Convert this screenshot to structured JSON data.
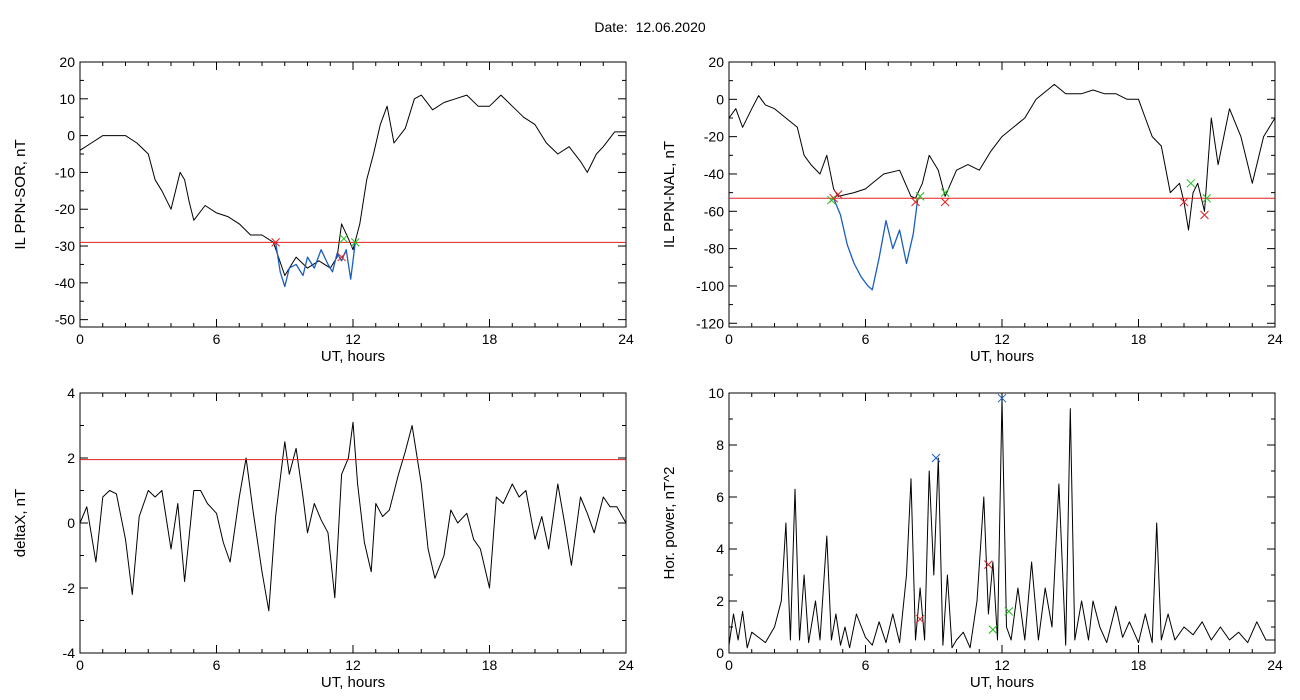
{
  "title": "Date:  12.06.2020",
  "chart_data": [
    {
      "type": "line",
      "xlabel": "UT, hours",
      "ylabel": "IL PPN-SOR, nT",
      "xlim": [
        0,
        24
      ],
      "ylim": [
        -52,
        20
      ],
      "xticks": [
        0,
        6,
        12,
        18,
        24
      ],
      "yticks": [
        -50,
        -40,
        -30,
        -20,
        -10,
        0,
        10,
        20
      ],
      "threshold": -29,
      "series": [
        {
          "color": "#000000",
          "x": [
            0,
            0.5,
            1,
            1.5,
            2,
            2.5,
            3,
            3.3,
            3.6,
            4,
            4.4,
            4.6,
            4.8,
            5,
            5.5,
            6,
            6.5,
            7,
            7.5,
            8,
            8.5,
            9,
            9.5,
            10,
            10.5,
            11,
            11.3,
            11.5,
            11.8,
            12,
            12.3,
            12.6,
            12.9,
            13.2,
            13.5,
            13.8,
            14.3,
            14.7,
            15,
            15.5,
            16,
            16.5,
            17,
            17.5,
            18,
            18.5,
            19,
            19.5,
            20,
            20.5,
            21,
            21.5,
            22,
            22.3,
            22.7,
            23,
            23.5,
            24
          ],
          "y": [
            -4,
            -2,
            0,
            0,
            0,
            -2,
            -5,
            -12,
            -15,
            -20,
            -10,
            -12,
            -18,
            -23,
            -19,
            -21,
            -22,
            -24,
            -27,
            -27,
            -29,
            -38,
            -33,
            -36,
            -34,
            -36,
            -33,
            -24,
            -28,
            -31,
            -24,
            -12,
            -5,
            3,
            8,
            -2,
            2,
            10,
            11,
            7,
            9,
            10,
            11,
            8,
            8,
            11,
            8,
            5,
            3,
            -2,
            -5,
            -3,
            -7,
            -10,
            -5,
            -3,
            1,
            1
          ]
        },
        {
          "color": "#1a5fbf",
          "x": [
            8.6,
            8.8,
            9,
            9.2,
            9.5,
            9.8,
            10,
            10.3,
            10.6,
            10.9,
            11.1,
            11.3,
            11.5,
            11.7,
            11.9,
            12.1
          ],
          "y": [
            -29,
            -37,
            -41,
            -36,
            -35,
            -38,
            -33,
            -36,
            -31,
            -35,
            -37,
            -32,
            -34,
            -31,
            -39,
            -29
          ]
        }
      ],
      "markers": [
        {
          "x": 8.6,
          "y": -29,
          "color": "#e02020"
        },
        {
          "x": 11.5,
          "y": -33,
          "color": "#e02020"
        },
        {
          "x": 11.6,
          "y": -28,
          "color": "#20c020"
        },
        {
          "x": 12.1,
          "y": -29,
          "color": "#20c020"
        }
      ]
    },
    {
      "type": "line",
      "xlabel": "UT, hours",
      "ylabel": "IL PPN-NAL, nT",
      "xlim": [
        0,
        24
      ],
      "ylim": [
        -122,
        20
      ],
      "xticks": [
        0,
        6,
        12,
        18,
        24
      ],
      "yticks": [
        -120,
        -100,
        -80,
        -60,
        -40,
        -20,
        0,
        20
      ],
      "threshold": -53,
      "series": [
        {
          "color": "#000000",
          "x": [
            0,
            0.3,
            0.6,
            1,
            1.3,
            1.6,
            2,
            2.5,
            3,
            3.3,
            3.6,
            4,
            4.3,
            4.6,
            4.8,
            5.5,
            6,
            6.3,
            6.8,
            7.5,
            8,
            8.2,
            8.5,
            8.8,
            9.2,
            9.5,
            10,
            10.5,
            11,
            11.5,
            12,
            12.5,
            13,
            13.5,
            14,
            14.3,
            14.8,
            15.5,
            16,
            16.5,
            17,
            17.5,
            18,
            18.3,
            18.6,
            19,
            19.4,
            19.8,
            20,
            20.2,
            20.4,
            20.6,
            20.9,
            21.2,
            21.5,
            22,
            22.5,
            23,
            23.5,
            24
          ],
          "y": [
            -10,
            -5,
            -15,
            -5,
            2,
            -3,
            -5,
            -10,
            -15,
            -30,
            -35,
            -40,
            -30,
            -48,
            -52,
            -50,
            -48,
            -45,
            -40,
            -38,
            -52,
            -53,
            -45,
            -30,
            -38,
            -52,
            -38,
            -35,
            -38,
            -28,
            -20,
            -15,
            -10,
            0,
            5,
            8,
            3,
            3,
            5,
            3,
            3,
            0,
            0,
            -10,
            -20,
            -25,
            -50,
            -45,
            -55,
            -70,
            -50,
            -45,
            -60,
            -10,
            -35,
            -5,
            -20,
            -45,
            -20,
            -10
          ]
        },
        {
          "color": "#1a5fbf",
          "x": [
            4.6,
            4.9,
            5.2,
            5.5,
            5.8,
            6.1,
            6.3,
            6.6,
            6.9,
            7.2,
            7.5,
            7.8,
            8.1,
            8.3
          ],
          "y": [
            -53,
            -62,
            -78,
            -88,
            -95,
            -100,
            -102,
            -85,
            -65,
            -80,
            -70,
            -88,
            -72,
            -53
          ]
        }
      ],
      "markers": [
        {
          "x": 4.6,
          "y": -53,
          "color": "#e02020"
        },
        {
          "x": 4.8,
          "y": -51,
          "color": "#e02020"
        },
        {
          "x": 8.2,
          "y": -55,
          "color": "#e02020"
        },
        {
          "x": 9.5,
          "y": -55,
          "color": "#e02020"
        },
        {
          "x": 20,
          "y": -55,
          "color": "#e02020"
        },
        {
          "x": 20.9,
          "y": -62,
          "color": "#e02020"
        },
        {
          "x": 4.5,
          "y": -54,
          "color": "#20c020"
        },
        {
          "x": 8.4,
          "y": -52,
          "color": "#20c020"
        },
        {
          "x": 9.5,
          "y": -50,
          "color": "#20c020"
        },
        {
          "x": 20.3,
          "y": -45,
          "color": "#20c020"
        },
        {
          "x": 21,
          "y": -53,
          "color": "#20c020"
        }
      ]
    },
    {
      "type": "line",
      "xlabel": "UT, hours",
      "ylabel": "deltaX, nT",
      "xlim": [
        0,
        24
      ],
      "ylim": [
        -4,
        4
      ],
      "xticks": [
        0,
        6,
        12,
        18,
        24
      ],
      "yticks": [
        -4,
        -2,
        0,
        2,
        4
      ],
      "threshold": 1.95,
      "series": [
        {
          "color": "#000000",
          "x": [
            0,
            0.3,
            0.7,
            1,
            1.3,
            1.6,
            2,
            2.3,
            2.6,
            3,
            3.3,
            3.6,
            4,
            4.3,
            4.6,
            5,
            5.3,
            5.6,
            6,
            6.3,
            6.6,
            7,
            7.3,
            7.6,
            8,
            8.3,
            8.6,
            9,
            9.2,
            9.5,
            9.8,
            10,
            10.3,
            10.6,
            10.9,
            11.2,
            11.5,
            11.8,
            12,
            12.2,
            12.5,
            12.8,
            13,
            13.3,
            13.6,
            14,
            14.3,
            14.6,
            15,
            15.3,
            15.6,
            16,
            16.3,
            16.6,
            17,
            17.3,
            17.6,
            18,
            18.3,
            18.6,
            19,
            19.3,
            19.6,
            20,
            20.3,
            20.6,
            21,
            21.3,
            21.6,
            22,
            22.3,
            22.6,
            23,
            23.3,
            23.6,
            24
          ],
          "y": [
            0,
            0.5,
            -1.2,
            0.8,
            1,
            0.9,
            -0.5,
            -2.2,
            0.2,
            1,
            0.8,
            1,
            -0.8,
            0.6,
            -1.8,
            1,
            1,
            0.6,
            0.3,
            -0.6,
            -1.2,
            0.8,
            2,
            0.4,
            -1.5,
            -2.7,
            0.2,
            2.5,
            1.5,
            2.3,
            0.8,
            -0.3,
            0.6,
            0.1,
            -0.3,
            -2.3,
            1.5,
            2,
            3.1,
            1.2,
            -0.6,
            -1.5,
            0.6,
            0.2,
            0.4,
            1.5,
            2.2,
            3,
            1.2,
            -0.8,
            -1.7,
            -1,
            0.4,
            0,
            0.3,
            -0.5,
            -0.8,
            -2,
            0.8,
            0.6,
            1.2,
            0.8,
            1,
            -0.5,
            0.2,
            -0.8,
            1.2,
            0,
            -1.3,
            0.8,
            0.3,
            -0.3,
            0.8,
            0.5,
            0.5,
            0
          ]
        }
      ],
      "markers": []
    },
    {
      "type": "line",
      "xlabel": "UT, hours",
      "ylabel": "Hor. power, nT^2",
      "xlim": [
        0,
        24
      ],
      "ylim": [
        0,
        10
      ],
      "xticks": [
        0,
        6,
        12,
        18,
        24
      ],
      "yticks": [
        0,
        2,
        4,
        6,
        8,
        10
      ],
      "threshold": null,
      "series": [
        {
          "color": "#000000",
          "x": [
            0,
            0.2,
            0.4,
            0.6,
            0.8,
            1,
            1.3,
            1.6,
            2,
            2.3,
            2.5,
            2.7,
            2.9,
            3.1,
            3.3,
            3.5,
            3.8,
            4,
            4.3,
            4.5,
            4.7,
            4.9,
            5.1,
            5.3,
            5.6,
            6,
            6.3,
            6.6,
            6.9,
            7.2,
            7.5,
            7.8,
            8,
            8.2,
            8.4,
            8.6,
            8.8,
            9,
            9.2,
            9.4,
            9.6,
            9.8,
            10,
            10.3,
            10.6,
            10.9,
            11.2,
            11.4,
            11.6,
            11.8,
            12,
            12.2,
            12.4,
            12.7,
            13,
            13.3,
            13.6,
            13.9,
            14.2,
            14.5,
            14.8,
            15,
            15.2,
            15.5,
            15.8,
            16,
            16.3,
            16.6,
            17,
            17.3,
            17.6,
            18,
            18.3,
            18.6,
            18.8,
            19,
            19.3,
            19.6,
            20,
            20.4,
            20.8,
            21.2,
            21.6,
            22,
            22.4,
            22.8,
            23.2,
            23.6,
            24
          ],
          "y": [
            0.3,
            1.5,
            0.5,
            1.6,
            0.2,
            0.8,
            0.6,
            0.4,
            1,
            2,
            5,
            0.5,
            6.3,
            0.5,
            3,
            0.4,
            2,
            0.5,
            4.5,
            0.5,
            1.5,
            0.3,
            1,
            0.2,
            1.5,
            0.6,
            0.3,
            1.2,
            0.4,
            1.5,
            0.4,
            3,
            6.7,
            0.5,
            2.5,
            0.5,
            7,
            3,
            7.5,
            0.3,
            3,
            0.2,
            0.5,
            0.8,
            0.2,
            2,
            6,
            1.5,
            3.5,
            0.5,
            9.8,
            1,
            0.5,
            2.5,
            0.5,
            3.5,
            0.5,
            2.5,
            1,
            6.5,
            0.3,
            9.4,
            0.5,
            2,
            0.5,
            2,
            1,
            0.4,
            1.8,
            0.6,
            1.2,
            0.4,
            1.5,
            0.4,
            5,
            0.5,
            1.5,
            0.5,
            1,
            0.7,
            1.2,
            0.5,
            1,
            0.5,
            0.8,
            0.4,
            1.2,
            0.5,
            0.5
          ]
        }
      ],
      "markers": [
        {
          "x": 8.4,
          "y": 1.3,
          "color": "#e02020"
        },
        {
          "x": 11.4,
          "y": 3.4,
          "color": "#e02020"
        },
        {
          "x": 11.6,
          "y": 0.9,
          "color": "#20c020"
        },
        {
          "x": 12.3,
          "y": 1.6,
          "color": "#20c020"
        },
        {
          "x": 9.1,
          "y": 7.5,
          "color": "#1a5fbf"
        },
        {
          "x": 12,
          "y": 9.8,
          "color": "#1a5fbf"
        }
      ]
    }
  ]
}
